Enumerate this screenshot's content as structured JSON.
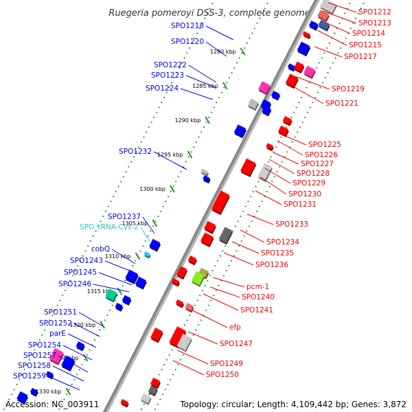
{
  "title": "Ruegeria pomeroyi DSS-3, complete genome",
  "footer": {
    "accession": "Accession: NC_003911",
    "topology": "Topology: circular; Length: 4,109,442 bp; Genes: 3,872"
  },
  "colors": {
    "backbone": "#888888",
    "dots": "#2a8a2a",
    "reverse_label": "#0000ee",
    "forward_label": "#ee0000",
    "rna_label": "#33bbdd"
  },
  "ticks": [
    "1280 kbp",
    "1285 kbp",
    "1290 kbp",
    "1295 kbp",
    "1300 kbp",
    "1305 kbp",
    "1310 kbp",
    "1315 kbp",
    "1320 kbp",
    "1325 kbp",
    "1330 kbp"
  ],
  "left_labels": [
    {
      "text": "SPO1218",
      "color": "blue"
    },
    {
      "text": "SPO1220",
      "color": "blue"
    },
    {
      "text": "SPO1222",
      "color": "blue"
    },
    {
      "text": "SPO1223",
      "color": "blue"
    },
    {
      "text": "SPO1224",
      "color": "blue"
    },
    {
      "text": "SPO1232",
      "color": "blue"
    },
    {
      "text": "SPO1237",
      "color": "blue"
    },
    {
      "text": "SPO_tRNA-Cys-2",
      "color": "cyan"
    },
    {
      "text": "cobQ",
      "color": "blue"
    },
    {
      "text": "SPO1243",
      "color": "blue"
    },
    {
      "text": "SPO1245",
      "color": "blue"
    },
    {
      "text": "SPO1246",
      "color": "blue"
    },
    {
      "text": "SPO1251",
      "color": "blue"
    },
    {
      "text": "SPO1252",
      "color": "blue"
    },
    {
      "text": "parE",
      "color": "blue"
    },
    {
      "text": "SPO1254",
      "color": "blue"
    },
    {
      "text": "SPO1257",
      "color": "blue"
    },
    {
      "text": "SPO1258",
      "color": "blue"
    },
    {
      "text": "SPO1259",
      "color": "blue"
    }
  ],
  "right_labels": [
    {
      "text": "SPO1212"
    },
    {
      "text": "SPO1213"
    },
    {
      "text": "SPO1214"
    },
    {
      "text": "SPO1215"
    },
    {
      "text": "SPO1217"
    },
    {
      "text": "SPO1219"
    },
    {
      "text": "SPO1221"
    },
    {
      "text": "SPO1225"
    },
    {
      "text": "SPO1226"
    },
    {
      "text": "SPO1227"
    },
    {
      "text": "SPO1228"
    },
    {
      "text": "SPO1229"
    },
    {
      "text": "SPO1230"
    },
    {
      "text": "SPO1231"
    },
    {
      "text": "SPO1233"
    },
    {
      "text": "SPO1234"
    },
    {
      "text": "SPO1235"
    },
    {
      "text": "SPO1236"
    },
    {
      "text": "pcm-1"
    },
    {
      "text": "SPO1240"
    },
    {
      "text": "SPO1241"
    },
    {
      "text": "efp"
    },
    {
      "text": "SPO1247"
    },
    {
      "text": "SPO1249"
    },
    {
      "text": "SPO1250"
    }
  ]
}
